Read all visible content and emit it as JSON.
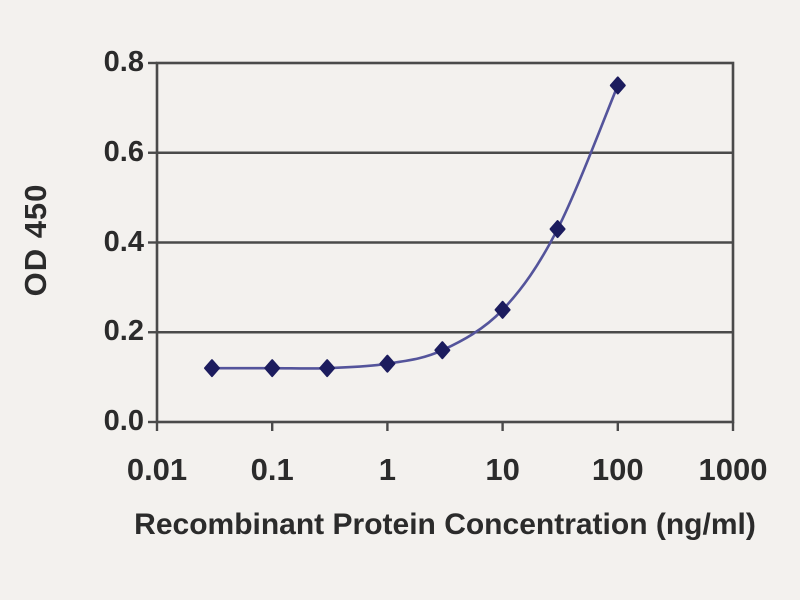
{
  "figure": {
    "description": "ELISA standard curve plot",
    "background_color": "#f3f1ee"
  },
  "chart_data": {
    "type": "line",
    "title": "",
    "xlabel": "Recombinant Protein Concentration (ng/ml)",
    "ylabel": "OD 450",
    "x_scale": "log",
    "y_scale": "linear",
    "x": [
      0.03,
      0.1,
      0.3,
      1,
      3,
      10,
      30,
      100
    ],
    "y": [
      0.12,
      0.12,
      0.12,
      0.13,
      0.16,
      0.25,
      0.43,
      0.75
    ],
    "xlim": [
      0.01,
      1000
    ],
    "ylim": [
      0,
      0.8
    ],
    "x_ticks": [
      0.01,
      0.1,
      1,
      10,
      100,
      1000
    ],
    "x_tick_labels": [
      "0.01",
      "0.1",
      "1",
      "10",
      "100",
      "1000"
    ],
    "y_ticks": [
      0,
      0.2,
      0.4,
      0.6,
      0.8
    ],
    "y_tick_labels": [
      "0.0",
      "0.2",
      "0.4",
      "0.6",
      "0.8"
    ],
    "grid": "horizontal-only",
    "legend": "none",
    "marker": "diamond",
    "colors": {
      "line": "#54549b",
      "marker": "#1c1c5e",
      "axis": "#4a4a4a",
      "grid": "#4a4a4a",
      "text": "#2b2b2b",
      "background": "#f3f1ee"
    }
  }
}
